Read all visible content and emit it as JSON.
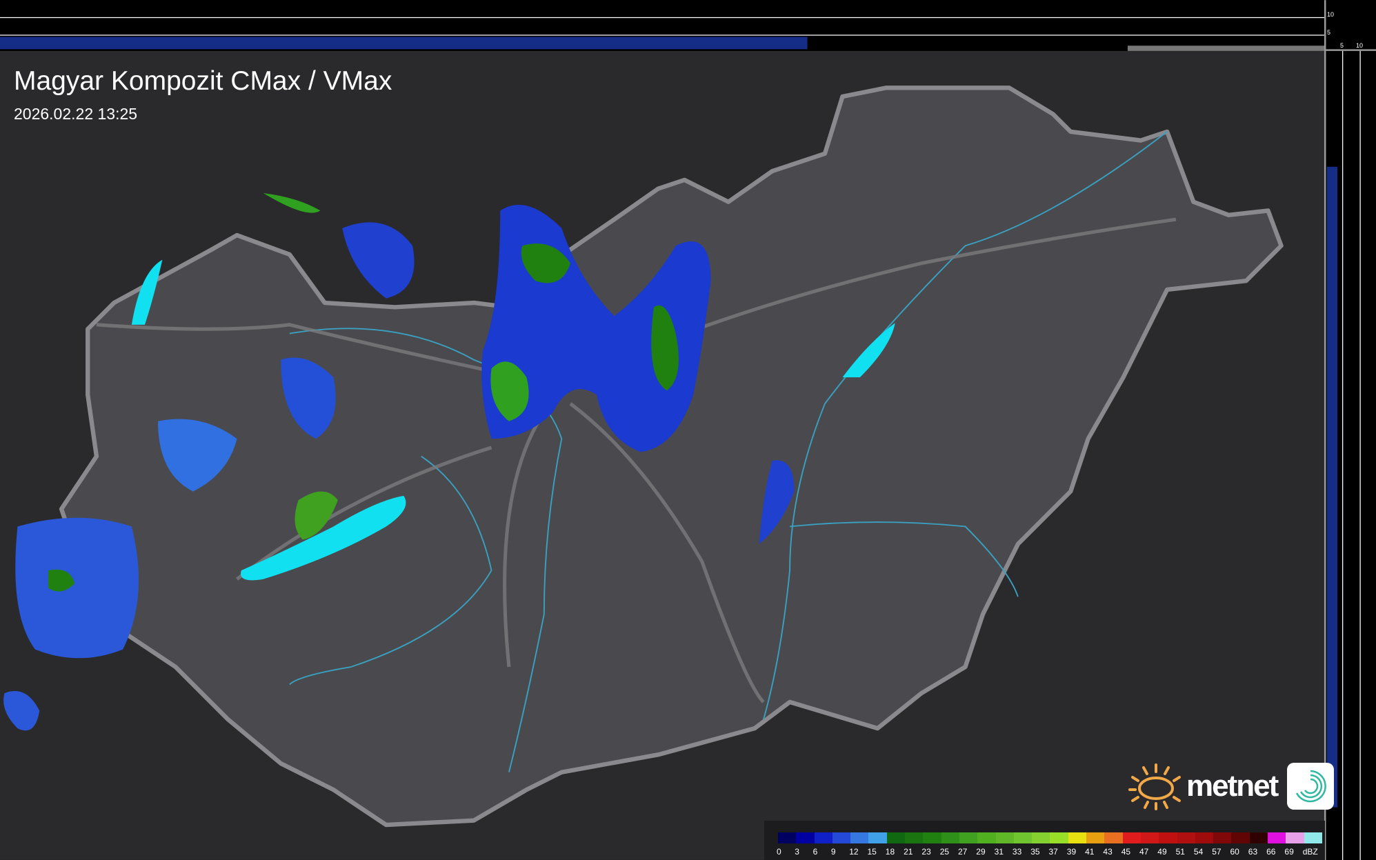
{
  "header": {
    "title": "Magyar Kompozit CMax / VMax",
    "timestamp": "2026.02.22 13:25"
  },
  "side_profile": {
    "top_ticks": [
      "10",
      "5"
    ],
    "right_ticks": [
      "5",
      "10"
    ]
  },
  "legend": {
    "unit": "dBZ",
    "labels": [
      "0",
      "3",
      "6",
      "9",
      "12",
      "15",
      "18",
      "21",
      "23",
      "25",
      "27",
      "29",
      "31",
      "33",
      "35",
      "37",
      "39",
      "41",
      "43",
      "45",
      "47",
      "49",
      "51",
      "54",
      "57",
      "60",
      "63",
      "66",
      "69"
    ],
    "colors": [
      "#000060",
      "#0000a0",
      "#1020c8",
      "#2448d8",
      "#3478e0",
      "#40a0e8",
      "#106810",
      "#1a7410",
      "#208010",
      "#2e9018",
      "#40a020",
      "#50b020",
      "#60b828",
      "#70c430",
      "#84d030",
      "#98e028",
      "#e8e010",
      "#e8a010",
      "#e87020",
      "#e01c1c",
      "#d01818",
      "#c01010",
      "#b01010",
      "#a00c0c",
      "#800808",
      "#600404",
      "#300000",
      "#e010e0",
      "#e8a0e8",
      "#90e8e8"
    ]
  },
  "colors": {
    "country_fill": "#4a4a4e",
    "border": "#8a8a8e",
    "river": "#3aa0c0",
    "lake": "#10e0f0",
    "background": "#2a2a2c"
  },
  "logo": {
    "text": "metnet"
  }
}
